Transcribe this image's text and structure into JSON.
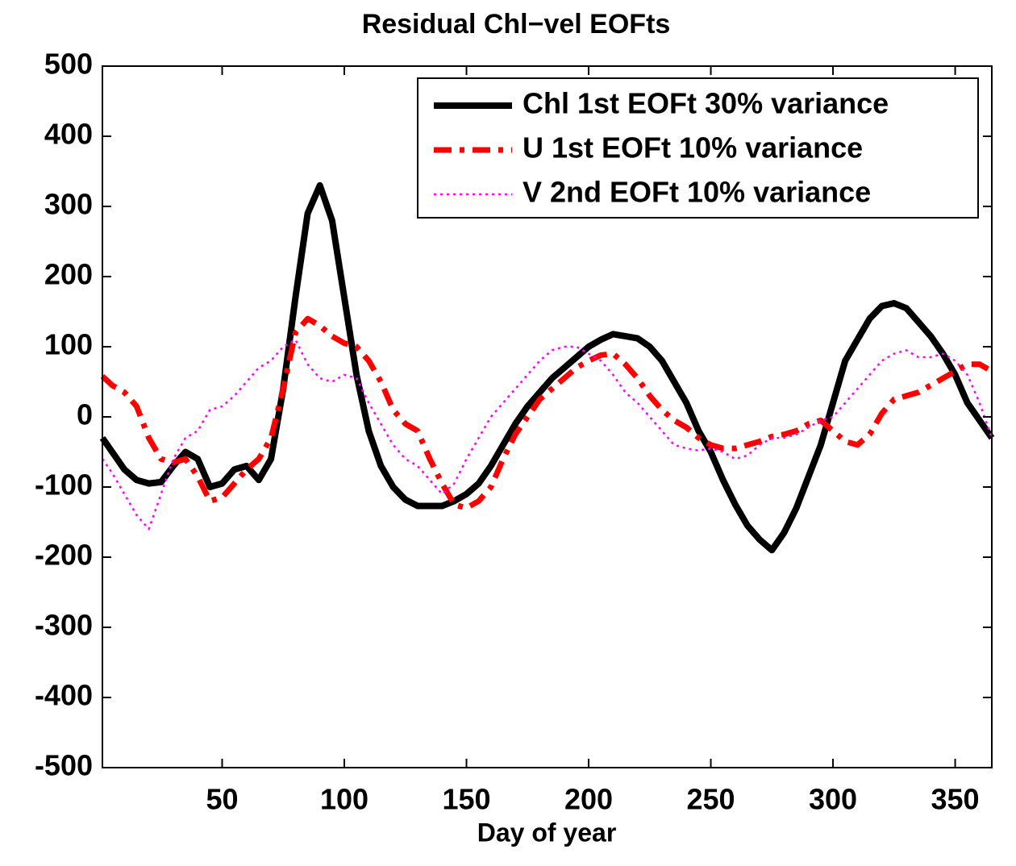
{
  "chart_data": {
    "type": "line",
    "title": "Residual Chl−vel EOFts",
    "xlabel": "Day of year",
    "x": [
      1,
      5,
      10,
      15,
      20,
      25,
      30,
      35,
      40,
      45,
      50,
      55,
      60,
      65,
      70,
      75,
      80,
      85,
      90,
      95,
      100,
      105,
      110,
      115,
      120,
      125,
      130,
      135,
      140,
      145,
      150,
      155,
      160,
      165,
      170,
      175,
      180,
      185,
      190,
      195,
      200,
      205,
      210,
      215,
      220,
      225,
      230,
      235,
      240,
      245,
      250,
      255,
      260,
      265,
      270,
      275,
      280,
      285,
      290,
      295,
      300,
      305,
      310,
      315,
      320,
      325,
      330,
      335,
      340,
      345,
      350,
      355,
      360,
      365
    ],
    "series": [
      {
        "name": "Chl 1st EOFt 30% variance",
        "color": "#000000",
        "style": "solid",
        "width": 8,
        "values": [
          -30,
          -50,
          -75,
          -90,
          -95,
          -93,
          -70,
          -50,
          -60,
          -100,
          -95,
          -75,
          -70,
          -90,
          -60,
          40,
          170,
          290,
          330,
          280,
          170,
          60,
          -20,
          -70,
          -100,
          -118,
          -127,
          -127,
          -127,
          -120,
          -110,
          -95,
          -70,
          -40,
          -10,
          15,
          35,
          55,
          70,
          85,
          100,
          110,
          118,
          115,
          112,
          100,
          80,
          50,
          20,
          -20,
          -50,
          -90,
          -125,
          -155,
          -175,
          -190,
          -165,
          -130,
          -85,
          -40,
          20,
          80,
          110,
          140,
          158,
          162,
          155,
          135,
          115,
          90,
          60,
          20,
          -5,
          -30
        ]
      },
      {
        "name": "U 1st EOFt 10% variance",
        "color": "#ff0000",
        "style": "dashdot",
        "width": 7,
        "values": [
          58,
          45,
          35,
          15,
          -30,
          -60,
          -65,
          -60,
          -85,
          -120,
          -115,
          -95,
          -75,
          -60,
          -30,
          40,
          120,
          140,
          130,
          115,
          105,
          100,
          80,
          50,
          10,
          -10,
          -20,
          -60,
          -95,
          -125,
          -130,
          -120,
          -100,
          -60,
          -25,
          0,
          25,
          40,
          55,
          70,
          80,
          88,
          90,
          75,
          55,
          30,
          10,
          -5,
          -15,
          -30,
          -40,
          -45,
          -45,
          -40,
          -35,
          -28,
          -25,
          -20,
          -10,
          -5,
          -20,
          -35,
          -40,
          -25,
          5,
          25,
          30,
          35,
          45,
          55,
          65,
          75,
          75,
          65
        ]
      },
      {
        "name": "V 2nd EOFt 10% variance",
        "color": "#ff00ff",
        "style": "dotted",
        "width": 2.5,
        "values": [
          -60,
          -80,
          -110,
          -140,
          -160,
          -110,
          -60,
          -30,
          -20,
          10,
          15,
          30,
          50,
          70,
          80,
          100,
          110,
          75,
          55,
          50,
          60,
          55,
          20,
          -10,
          -40,
          -60,
          -70,
          -90,
          -110,
          -95,
          -60,
          -30,
          0,
          20,
          40,
          60,
          80,
          95,
          100,
          100,
          90,
          80,
          60,
          35,
          20,
          0,
          -20,
          -40,
          -45,
          -48,
          -45,
          -50,
          -60,
          -55,
          -40,
          -30,
          -30,
          -25,
          -15,
          -5,
          0,
          20,
          40,
          60,
          80,
          90,
          95,
          85,
          85,
          90,
          80,
          60,
          20,
          -30
        ]
      }
    ],
    "xlim": [
      1,
      365
    ],
    "xticks": [
      50,
      100,
      150,
      200,
      250,
      300,
      350
    ],
    "ylim": [
      -500,
      500
    ],
    "yticks": [
      -500,
      -400,
      -300,
      -200,
      -100,
      0,
      100,
      200,
      300,
      400,
      500
    ],
    "legend": "northeast"
  }
}
